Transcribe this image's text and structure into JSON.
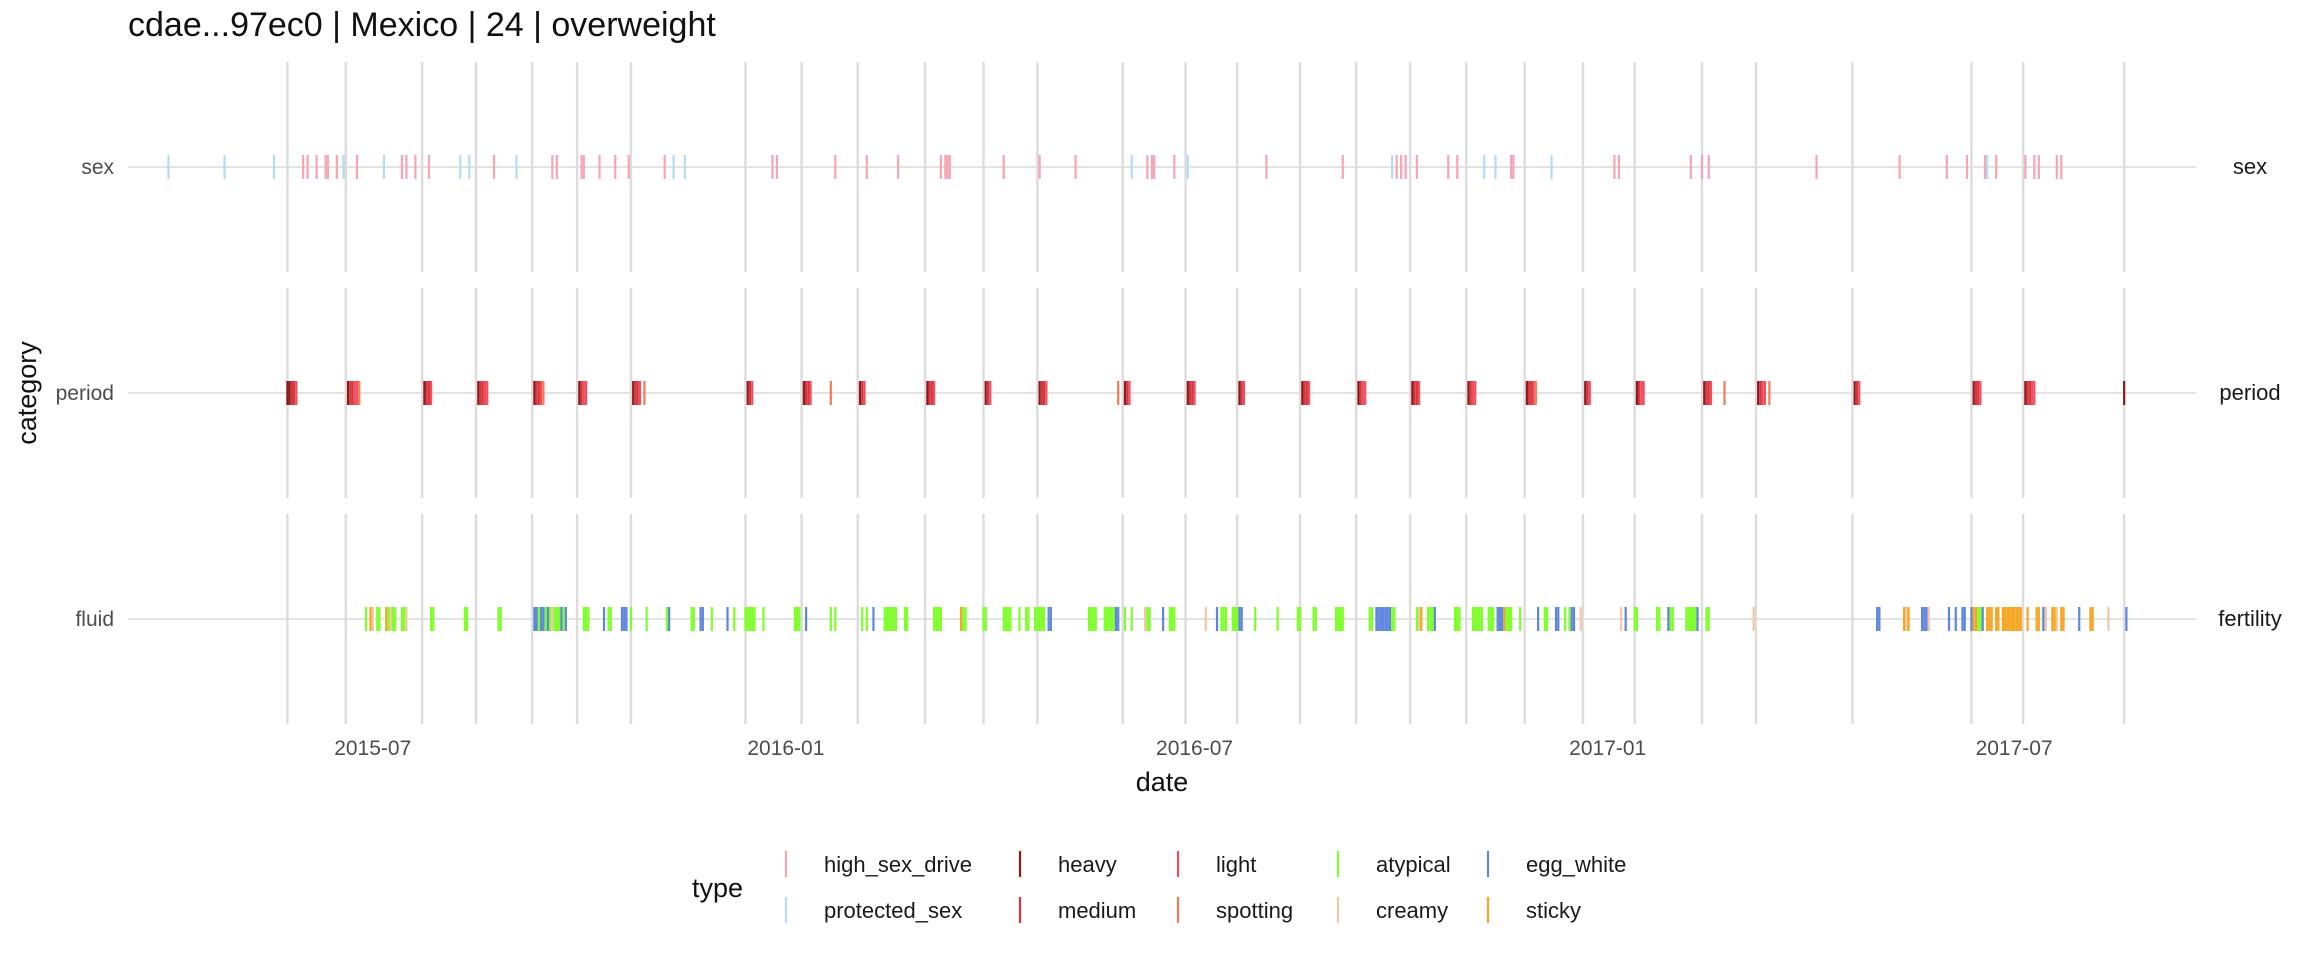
{
  "title": "cdae...97ec0 | Mexico | 24 | overweight",
  "chart_data": {
    "type": "scatter",
    "mark": "vertical tick (event marker)",
    "title": "cdae...97ec0 | Mexico | 24 | overweight",
    "xlabel": "date",
    "ylabel": "category",
    "xlim": [
      "2015-03-14",
      "2017-09-20"
    ],
    "x_ticks": [
      "2015-07-01",
      "2016-01-01",
      "2016-07-01",
      "2017-01-01",
      "2017-07-01"
    ],
    "x_tick_labels": [
      "2015-07",
      "2016-01",
      "2016-07",
      "2017-01",
      "2017-07"
    ],
    "cycle_starts": [
      "2015-05-24",
      "2015-06-19",
      "2015-07-23",
      "2015-08-16",
      "2015-09-10",
      "2015-09-30",
      "2015-10-24",
      "2015-12-14",
      "2016-01-08",
      "2016-02-02",
      "2016-03-03",
      "2016-03-29",
      "2016-04-22",
      "2016-05-30",
      "2016-06-27",
      "2016-07-20",
      "2016-08-17",
      "2016-09-11",
      "2016-10-05",
      "2016-10-30",
      "2016-11-25",
      "2016-12-21",
      "2017-01-13",
      "2017-02-12",
      "2017-03-08",
      "2017-04-20",
      "2017-06-12",
      "2017-07-05",
      "2017-08-19"
    ],
    "grid": true,
    "legend_position": "bottom",
    "legend_title": "type",
    "facets": [
      {
        "name": "sex",
        "y_label": "sex",
        "strip_label": "sex",
        "series": [
          {
            "name": "high_sex_drive",
            "color": "#f4a6b5",
            "dates": [
              "2015-05-31",
              "2015-06-02",
              "2015-06-06",
              "2015-06-10",
              "2015-06-11",
              "2015-06-15",
              "2015-06-18",
              "2015-06-24",
              "2015-07-14",
              "2015-07-16",
              "2015-07-20",
              "2015-07-26",
              "2015-08-24",
              "2015-09-19",
              "2015-09-21",
              "2015-10-02",
              "2015-10-03",
              "2015-10-10",
              "2015-10-17",
              "2015-10-23",
              "2015-11-08",
              "2015-12-26",
              "2015-12-28",
              "2016-01-23",
              "2016-02-06",
              "2016-02-20",
              "2016-03-10",
              "2016-03-12",
              "2016-03-13",
              "2016-03-14",
              "2016-04-07",
              "2016-04-23",
              "2016-05-09",
              "2016-06-10",
              "2016-06-12",
              "2016-06-13",
              "2016-06-22",
              "2016-08-02",
              "2016-09-05",
              "2016-09-29",
              "2016-10-01",
              "2016-10-03",
              "2016-10-08",
              "2016-10-22",
              "2016-10-26",
              "2016-11-19",
              "2016-11-20",
              "2017-01-04",
              "2017-01-06",
              "2017-02-07",
              "2017-02-12",
              "2017-02-15",
              "2017-04-04",
              "2017-05-11",
              "2017-06-01",
              "2017-06-10",
              "2017-06-18",
              "2017-06-23",
              "2017-07-06",
              "2017-07-10",
              "2017-07-12",
              "2017-07-20",
              "2017-07-22"
            ]
          },
          {
            "name": "protected_sex",
            "color": "#b5dcf2",
            "dates": [
              "2015-04-01",
              "2015-04-26",
              "2015-05-18",
              "2015-06-18",
              "2015-07-06",
              "2015-08-09",
              "2015-08-13",
              "2015-09-03",
              "2015-11-12",
              "2015-11-17",
              "2016-06-03",
              "2016-06-28",
              "2016-09-27",
              "2016-11-07",
              "2016-11-12",
              "2016-12-07",
              "2017-06-19"
            ]
          }
        ]
      },
      {
        "name": "period",
        "y_label": "period",
        "strip_label": "period",
        "series": [
          {
            "name": "heavy",
            "color": "#8b1a1f",
            "dates": [
              "2015-05-24",
              "2015-05-25",
              "2015-06-20",
              "2015-07-24",
              "2015-08-17",
              "2015-09-11",
              "2015-10-01",
              "2015-10-25",
              "2015-12-15",
              "2016-01-09",
              "2016-02-03",
              "2016-03-04",
              "2016-03-30",
              "2016-04-23",
              "2016-05-31",
              "2016-06-28",
              "2016-07-21",
              "2016-08-18",
              "2016-09-12",
              "2016-10-06",
              "2016-10-31",
              "2016-11-26",
              "2016-12-22",
              "2017-01-14",
              "2017-02-13",
              "2017-03-09",
              "2017-04-21",
              "2017-06-13",
              "2017-07-06",
              "2017-08-19"
            ]
          },
          {
            "name": "medium",
            "color": "#d7343b",
            "dates": [
              "2015-05-26",
              "2015-05-27",
              "2015-06-21",
              "2015-06-22",
              "2015-07-25",
              "2015-07-26",
              "2015-08-18",
              "2015-08-19",
              "2015-09-12",
              "2015-09-13",
              "2015-10-02",
              "2015-10-26",
              "2015-10-27",
              "2015-12-16",
              "2016-01-10",
              "2016-01-11",
              "2016-02-04",
              "2016-03-05",
              "2016-03-06",
              "2016-03-31",
              "2016-04-24",
              "2016-04-25",
              "2016-06-01",
              "2016-06-29",
              "2016-06-30",
              "2016-07-22",
              "2016-08-19",
              "2016-08-20",
              "2016-09-13",
              "2016-10-07",
              "2016-10-08",
              "2016-11-01",
              "2016-11-27",
              "2016-11-28",
              "2016-12-23",
              "2017-01-15",
              "2017-02-14",
              "2017-02-15",
              "2017-03-10",
              "2017-04-22",
              "2017-06-14",
              "2017-06-15",
              "2017-07-07",
              "2017-07-08"
            ]
          },
          {
            "name": "light",
            "color": "#f24d5e",
            "dates": [
              "2015-05-28",
              "2015-06-23",
              "2015-06-24",
              "2015-07-27",
              "2015-08-20",
              "2015-08-21",
              "2015-09-14",
              "2015-10-03",
              "2015-10-04",
              "2015-10-28",
              "2015-12-17",
              "2016-01-12",
              "2016-02-05",
              "2016-03-07",
              "2016-04-01",
              "2016-04-26",
              "2016-06-02",
              "2016-07-01",
              "2016-07-23",
              "2016-08-21",
              "2016-09-14",
              "2016-09-15",
              "2016-10-09",
              "2016-11-02",
              "2016-11-03",
              "2016-11-29",
              "2016-12-24",
              "2017-01-16",
              "2017-01-17",
              "2017-02-16",
              "2017-03-11",
              "2017-03-12",
              "2017-04-23",
              "2017-06-16",
              "2017-07-09",
              "2017-07-10"
            ]
          },
          {
            "name": "spotting",
            "color": "#f47a55",
            "dates": [
              "2015-06-25",
              "2015-09-15",
              "2015-10-30",
              "2016-01-21",
              "2016-05-28",
              "2016-11-30",
              "2017-02-22",
              "2017-03-14"
            ]
          }
        ]
      },
      {
        "name": "fluid",
        "y_label": "fluid",
        "strip_label": "fertility",
        "series": [
          {
            "name": "atypical",
            "color": "#7fff2a",
            "dates": [
              "2015-06-28",
              "2015-07-03",
              "2015-07-04",
              "2015-07-08",
              "2015-07-09",
              "2015-07-10",
              "2015-07-11",
              "2015-07-14",
              "2015-07-15",
              "2015-07-27",
              "2015-07-28",
              "2015-08-11",
              "2015-08-12",
              "2015-08-26",
              "2015-08-27",
              "2015-09-12",
              "2015-09-13",
              "2015-09-14",
              "2015-09-15",
              "2015-09-16",
              "2015-09-17",
              "2015-09-18",
              "2015-09-20",
              "2015-09-21",
              "2015-09-22",
              "2015-09-24",
              "2015-10-03",
              "2015-10-04",
              "2015-10-05",
              "2015-10-14",
              "2015-10-15",
              "2015-10-24",
              "2015-10-31",
              "2015-11-09",
              "2015-11-20",
              "2015-11-21",
              "2015-11-29",
              "2015-12-09",
              "2015-12-14",
              "2015-12-15",
              "2015-12-16",
              "2015-12-17",
              "2015-12-18",
              "2015-12-22",
              "2016-01-05",
              "2016-01-06",
              "2016-01-07",
              "2016-01-21",
              "2016-01-23",
              "2016-02-04",
              "2016-02-06",
              "2016-02-14",
              "2016-02-15",
              "2016-02-16",
              "2016-02-17",
              "2016-02-18",
              "2016-02-19",
              "2016-02-23",
              "2016-02-24",
              "2016-03-07",
              "2016-03-08",
              "2016-03-09",
              "2016-03-10",
              "2016-03-20",
              "2016-03-21",
              "2016-03-29",
              "2016-03-30",
              "2016-04-07",
              "2016-04-08",
              "2016-04-09",
              "2016-04-10",
              "2016-04-14",
              "2016-04-17",
              "2016-04-18",
              "2016-04-21",
              "2016-04-22",
              "2016-04-23",
              "2016-04-24",
              "2016-04-25",
              "2016-05-15",
              "2016-05-16",
              "2016-05-17",
              "2016-05-18",
              "2016-05-22",
              "2016-05-23",
              "2016-05-24",
              "2016-05-25",
              "2016-05-26",
              "2016-05-31",
              "2016-06-03",
              "2016-06-10",
              "2016-06-11",
              "2016-06-20",
              "2016-06-21",
              "2016-06-22",
              "2016-07-13",
              "2016-07-14",
              "2016-07-15",
              "2016-07-18",
              "2016-07-19",
              "2016-07-20",
              "2016-07-28",
              "2016-08-07",
              "2016-08-16",
              "2016-08-17",
              "2016-08-23",
              "2016-08-24",
              "2016-09-02",
              "2016-09-03",
              "2016-09-04",
              "2016-09-05",
              "2016-09-17",
              "2016-09-18",
              "2016-09-27",
              "2016-09-28",
              "2016-10-08",
              "2016-10-09",
              "2016-10-10",
              "2016-10-13",
              "2016-10-14",
              "2016-10-15",
              "2016-10-25",
              "2016-10-26",
              "2016-10-27",
              "2016-11-02",
              "2016-11-03",
              "2016-11-04",
              "2016-11-05",
              "2016-11-06",
              "2016-11-09",
              "2016-11-10",
              "2016-11-11",
              "2016-11-13",
              "2016-11-14",
              "2016-11-16",
              "2016-11-17",
              "2016-11-18",
              "2016-11-19",
              "2016-11-23",
              "2016-12-04",
              "2016-12-05",
              "2016-12-13",
              "2016-12-15",
              "2017-01-13",
              "2017-01-14",
              "2017-01-23",
              "2017-01-24",
              "2017-01-29",
              "2017-01-30",
              "2017-02-05",
              "2017-02-06",
              "2017-02-07",
              "2017-02-08",
              "2017-02-09",
              "2017-02-14",
              "2017-02-15",
              "2017-06-15",
              "2017-06-16",
              "2017-08-04"
            ]
          },
          {
            "name": "egg_white",
            "color": "#5f85e0",
            "dates": [
              "2015-09-11",
              "2015-09-12",
              "2015-09-14",
              "2015-09-15",
              "2015-09-17",
              "2015-09-23",
              "2015-09-25",
              "2015-10-12",
              "2015-10-20",
              "2015-10-21",
              "2015-10-22",
              "2015-11-10",
              "2015-11-24",
              "2015-11-25",
              "2015-12-06",
              "2016-01-10",
              "2016-02-09",
              "2016-04-27",
              "2016-04-28",
              "2016-05-27",
              "2016-05-28",
              "2016-06-17",
              "2016-07-11",
              "2016-07-21",
              "2016-07-22",
              "2016-09-20",
              "2016-09-21",
              "2016-09-22",
              "2016-09-23",
              "2016-09-24",
              "2016-09-25",
              "2016-09-26",
              "2016-10-16",
              "2016-11-13",
              "2016-11-14",
              "2016-11-15",
              "2016-12-01",
              "2016-12-09",
              "2016-12-10",
              "2016-12-16",
              "2016-12-17",
              "2017-01-09",
              "2017-01-28",
              "2017-02-10",
              "2017-05-01",
              "2017-05-02",
              "2017-05-21",
              "2017-05-22",
              "2017-05-23",
              "2017-06-02",
              "2017-06-05",
              "2017-06-08",
              "2017-06-09",
              "2017-06-12",
              "2017-06-17",
              "2017-06-24",
              "2017-07-14",
              "2017-07-15",
              "2017-07-30",
              "2017-08-20"
            ]
          },
          {
            "name": "creamy",
            "color": "#f5c6a1",
            "dates": [
              "2015-07-01",
              "2015-07-09",
              "2015-07-16",
              "2015-09-19",
              "2016-06-09",
              "2016-07-06",
              "2016-10-09",
              "2016-12-20",
              "2017-01-07",
              "2017-03-07",
              "2017-05-14",
              "2017-05-24",
              "2017-06-20",
              "2017-07-15",
              "2017-07-20",
              "2017-08-12"
            ]
          },
          {
            "name": "sticky",
            "color": "#f5a623",
            "dates": [
              "2015-06-30",
              "2015-07-07",
              "2016-03-19",
              "2016-10-10",
              "2016-11-16",
              "2017-05-13",
              "2017-05-15",
              "2017-06-13",
              "2017-06-14",
              "2017-06-19",
              "2017-06-20",
              "2017-06-21",
              "2017-06-23",
              "2017-06-24",
              "2017-06-26",
              "2017-06-27",
              "2017-06-28",
              "2017-06-29",
              "2017-06-30",
              "2017-07-01",
              "2017-07-02",
              "2017-07-03",
              "2017-07-04",
              "2017-07-07",
              "2017-07-11",
              "2017-07-12",
              "2017-07-18",
              "2017-07-19",
              "2017-07-22",
              "2017-07-23",
              "2017-08-04",
              "2017-08-05"
            ]
          }
        ]
      }
    ],
    "legend": [
      {
        "name": "high_sex_drive",
        "color": "#f4a6b5"
      },
      {
        "name": "protected_sex",
        "color": "#b5dcf2"
      },
      {
        "name": "heavy",
        "color": "#8b1a1f"
      },
      {
        "name": "medium",
        "color": "#d7343b"
      },
      {
        "name": "light",
        "color": "#f24d5e"
      },
      {
        "name": "spotting",
        "color": "#f47a55"
      },
      {
        "name": "atypical",
        "color": "#7fff2a"
      },
      {
        "name": "creamy",
        "color": "#f5c6a1"
      },
      {
        "name": "egg_white",
        "color": "#5f85e0"
      },
      {
        "name": "sticky",
        "color": "#f5a623"
      }
    ]
  }
}
